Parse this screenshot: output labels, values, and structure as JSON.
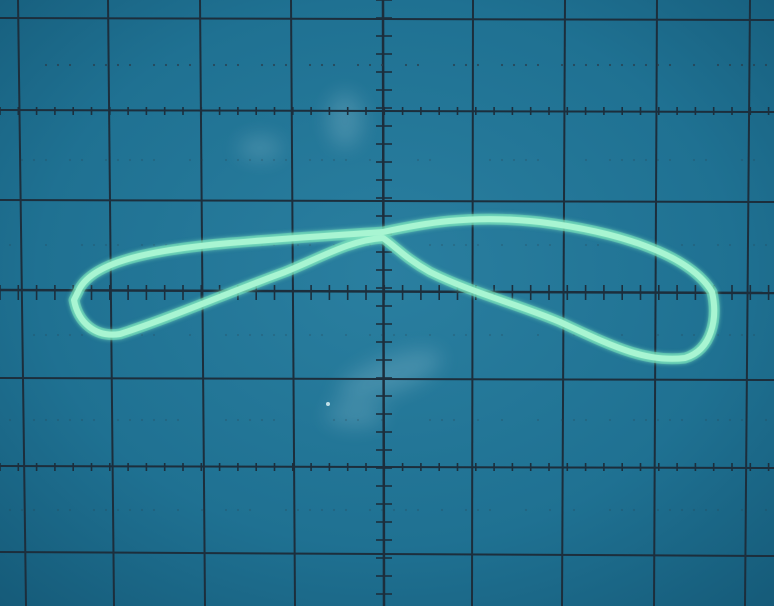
{
  "screen": {
    "background_color": "#1f7192",
    "background_edge_color": "#155a78",
    "grid_color": "#1c2e3c",
    "dotted_line_color": "#2a3e4c",
    "trace_color": "#a8f5d2",
    "trace_glow_color": "#6fe0b8",
    "glare_color": "#d8f0f6"
  }
}
